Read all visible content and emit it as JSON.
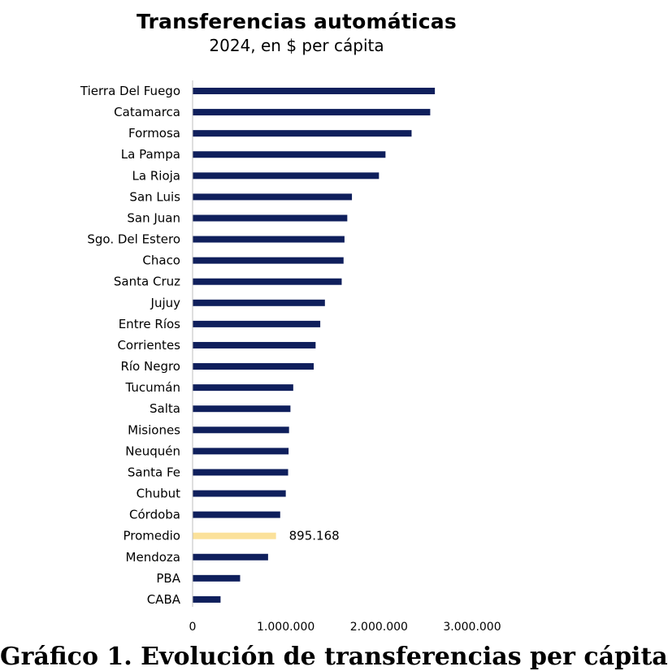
{
  "chart_data": {
    "type": "bar",
    "orientation": "horizontal",
    "title": "Transferencias automáticas",
    "subtitle": "2024, en $ per cápita",
    "categories": [
      "Tierra Del Fuego",
      "Catamarca",
      "Formosa",
      "La Pampa",
      "La Rioja",
      "San Luis",
      "San Juan",
      "Sgo. Del Estero",
      "Chaco",
      "Santa Cruz",
      "Jujuy",
      "Entre Ríos",
      "Corrientes",
      "Río Negro",
      "Tucumán",
      "Salta",
      "Misiones",
      "Neuquén",
      "Santa Fe",
      "Chubut",
      "Córdoba",
      "Promedio",
      "Mendoza",
      "PBA",
      "CABA"
    ],
    "values": [
      2600000,
      2550000,
      2350000,
      2070000,
      2000000,
      1710000,
      1660000,
      1630000,
      1620000,
      1600000,
      1420000,
      1370000,
      1320000,
      1300000,
      1080000,
      1050000,
      1035000,
      1030000,
      1025000,
      1000000,
      940000,
      895168,
      810000,
      510000,
      300000
    ],
    "highlight": {
      "category": "Promedio",
      "label": "895.168"
    },
    "xlim": [
      0,
      3000000
    ],
    "xticks": [
      0,
      1000000,
      2000000,
      3000000
    ],
    "xtick_labels": [
      "0",
      "1.000.000",
      "2.000.000",
      "3.000.000"
    ],
    "xlabel": "",
    "ylabel": "",
    "grid": false,
    "colors": {
      "bar": "#0f1f5c",
      "highlight": "#fbe19a",
      "axis": "#bfbfbf"
    }
  },
  "footer_text": "Gráfico 1. Evolución de transferencias per cápita"
}
